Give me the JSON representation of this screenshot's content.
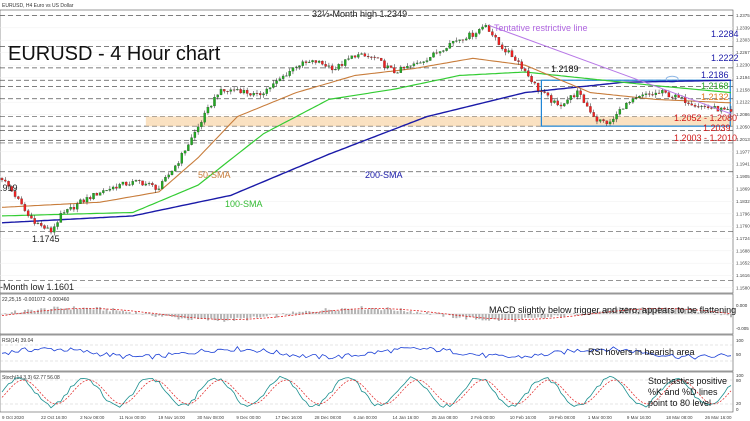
{
  "header": {
    "symbol_line": "EURUSD, H4  Euro vs US Dollar"
  },
  "chart_data": {
    "type": "line",
    "title": "EURUSD - 4 Hour chart",
    "colors": {
      "candle_up": "#22aa22",
      "candle_down": "#ee2222",
      "wick": "#222222",
      "sma50": "#c87d3c",
      "sma100": "#33cc33",
      "sma200": "#1a1aa8",
      "trendline": "#b777e6",
      "box": "#1f86d6",
      "band": "#f6c98e",
      "level_blue": "#1a1aa8",
      "level_green": "#2aa52a",
      "level_orange": "#e07a1e",
      "level_red": "#d01818"
    },
    "price_axis_ticks": [
      1.2375,
      1.2339,
      1.2303,
      1.2267,
      1.223,
      1.2194,
      1.2158,
      1.2122,
      1.2086,
      1.205,
      1.2013,
      1.1977,
      1.1941,
      1.1905,
      1.1869,
      1.1832,
      1.1796,
      1.176,
      1.1724,
      1.1688,
      1.1652,
      1.1616,
      1.158
    ],
    "time_labels": [
      "9 Oct 2020",
      "22 Oct 16:00",
      "2 Nov 08:00",
      "11 Nov 00:00",
      "19 Nov 16:00",
      "30 Nov 08:00",
      "9 Dec 00:00",
      "17 Dec 16:00",
      "28 Dec 08:00",
      "6 Jan 00:00",
      "14 Jan 16:00",
      "25 Jan 08:00",
      "2 Feb 00:00",
      "10 Feb 16:00",
      "19 Feb 08:00",
      "1 Mar 00:00",
      "9 Mar 16:00",
      "18 Mar 08:00",
      "26 Mar 16:00"
    ],
    "price_anchors": [
      {
        "i": 0,
        "p": 1.19
      },
      {
        "i": 4,
        "p": 1.185
      },
      {
        "i": 8,
        "p": 1.179
      },
      {
        "i": 12,
        "p": 1.176
      },
      {
        "i": 15,
        "p": 1.1745
      },
      {
        "i": 18,
        "p": 1.179
      },
      {
        "i": 24,
        "p": 1.183
      },
      {
        "i": 30,
        "p": 1.186
      },
      {
        "i": 36,
        "p": 1.188
      },
      {
        "i": 42,
        "p": 1.189
      },
      {
        "i": 48,
        "p": 1.187
      },
      {
        "i": 54,
        "p": 1.195
      },
      {
        "i": 60,
        "p": 1.205
      },
      {
        "i": 66,
        "p": 1.215
      },
      {
        "i": 72,
        "p": 1.216
      },
      {
        "i": 78,
        "p": 1.214
      },
      {
        "i": 84,
        "p": 1.218
      },
      {
        "i": 90,
        "p": 1.223
      },
      {
        "i": 96,
        "p": 1.224
      },
      {
        "i": 102,
        "p": 1.222
      },
      {
        "i": 108,
        "p": 1.226
      },
      {
        "i": 114,
        "p": 1.225
      },
      {
        "i": 120,
        "p": 1.221
      },
      {
        "i": 126,
        "p": 1.223
      },
      {
        "i": 132,
        "p": 1.226
      },
      {
        "i": 138,
        "p": 1.23
      },
      {
        "i": 144,
        "p": 1.232
      },
      {
        "i": 148,
        "p": 1.2349
      },
      {
        "i": 152,
        "p": 1.229
      },
      {
        "i": 158,
        "p": 1.224
      },
      {
        "i": 164,
        "p": 1.216
      },
      {
        "i": 170,
        "p": 1.211
      },
      {
        "i": 176,
        "p": 1.215
      },
      {
        "i": 182,
        "p": 1.207
      },
      {
        "i": 186,
        "p": 1.206
      },
      {
        "i": 190,
        "p": 1.211
      },
      {
        "i": 196,
        "p": 1.214
      },
      {
        "i": 202,
        "p": 1.215
      },
      {
        "i": 208,
        "p": 1.213
      },
      {
        "i": 214,
        "p": 1.211
      },
      {
        "i": 220,
        "p": 1.21
      },
      {
        "i": 223,
        "p": 1.209
      }
    ],
    "sma50_anchors": [
      {
        "i": 0,
        "p": 1.1815
      },
      {
        "i": 30,
        "p": 1.183
      },
      {
        "i": 48,
        "p": 1.186
      },
      {
        "i": 60,
        "p": 1.196
      },
      {
        "i": 72,
        "p": 1.208
      },
      {
        "i": 90,
        "p": 1.215
      },
      {
        "i": 108,
        "p": 1.22
      },
      {
        "i": 126,
        "p": 1.222
      },
      {
        "i": 144,
        "p": 1.225
      },
      {
        "i": 160,
        "p": 1.223
      },
      {
        "i": 180,
        "p": 1.215
      },
      {
        "i": 200,
        "p": 1.213
      },
      {
        "i": 223,
        "p": 1.212
      }
    ],
    "sma100_anchors": [
      {
        "i": 0,
        "p": 1.179
      },
      {
        "i": 40,
        "p": 1.18
      },
      {
        "i": 60,
        "p": 1.188
      },
      {
        "i": 80,
        "p": 1.203
      },
      {
        "i": 100,
        "p": 1.213
      },
      {
        "i": 120,
        "p": 1.216
      },
      {
        "i": 140,
        "p": 1.22
      },
      {
        "i": 160,
        "p": 1.221
      },
      {
        "i": 180,
        "p": 1.219
      },
      {
        "i": 200,
        "p": 1.217
      },
      {
        "i": 223,
        "p": 1.215
      }
    ],
    "sma200_anchors": [
      {
        "i": 0,
        "p": 1.177
      },
      {
        "i": 40,
        "p": 1.179
      },
      {
        "i": 70,
        "p": 1.185
      },
      {
        "i": 100,
        "p": 1.197
      },
      {
        "i": 130,
        "p": 1.208
      },
      {
        "i": 160,
        "p": 1.215
      },
      {
        "i": 190,
        "p": 1.218
      },
      {
        "i": 223,
        "p": 1.2186
      }
    ],
    "support_band": [
      1.208,
      1.2052
    ],
    "consolidation_box": {
      "top": 1.2186,
      "bottom": 1.2052
    },
    "horizontal_levels": [
      1.2375,
      1.2284,
      1.2222,
      1.2186,
      1.2168,
      1.2132,
      1.208,
      1.2052,
      1.2039,
      1.201,
      1.2003,
      1.1919,
      1.1745,
      1.1601
    ],
    "levels": [
      {
        "text": "1.2284",
        "color": "level_blue"
      },
      {
        "text": "1.2222",
        "color": "level_blue"
      },
      {
        "text": "1.2186",
        "color": "level_blue"
      },
      {
        "text": "1.2168",
        "color": "level_green"
      },
      {
        "text": "1.2132",
        "color": "level_orange"
      },
      {
        "text": "1.2052 - 1.2080",
        "color": "level_red"
      },
      {
        "text": "1.2039",
        "color": "level_red"
      },
      {
        "text": "1.2003 - 1.2010",
        "color": "level_red"
      }
    ],
    "annotations": {
      "high": "32½-Month high 1.2349",
      "trendline": "Tentative restrictive line",
      "level_1_2189": "1.2189",
      "low_1_1919": ".919",
      "low_1_1745": "1.1745",
      "month_low": "-Month low 1.1601",
      "sma50": "50-SMA",
      "sma100": "100-SMA",
      "sma200": "200-SMA"
    },
    "panels": {
      "macd": {
        "header": "22,25,15  -0.001072 -0.000460",
        "note": "MACD slightly below trigger and zero, appears to be flattening",
        "axis": [
          "0.000",
          "-0.005"
        ]
      },
      "rsi": {
        "header": "RSI(14) 39.04",
        "note": "RSI hovers in bearish area",
        "axis": [
          "100",
          "50"
        ]
      },
      "stoch": {
        "header": "Stoch(14,3,3) 62.77 56.08",
        "note_lines": [
          "Stochastics positive",
          "%K and %D lines",
          "point to 80 level"
        ],
        "axis": [
          "100",
          "80",
          "20",
          "0"
        ]
      }
    }
  }
}
